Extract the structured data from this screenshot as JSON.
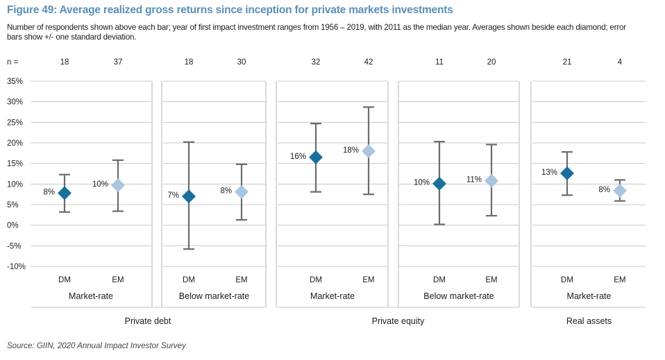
{
  "title": "Figure 49: Average realized gross returns since inception  for private markets investments",
  "subtitle": "Number of respondents shown above each bar; year of first impact investment ranges from 1956 – 2019, with 2011 as the median year. Averages shown beside each diamond; error bars show +/- one standard deviation.",
  "source": "Source: GIIN, 2020 Annual Impact Investor Survey",
  "colors": {
    "dm": "#1a6f9c",
    "em": "#a9c5e0",
    "grid": "#c8c8c8",
    "error_bar": "#6b6b6b",
    "separator": "#d9d9d9"
  },
  "chart_data": {
    "type": "scatter",
    "variant": "dot-with-error-bars",
    "n_label": "n =",
    "ylim": [
      -10,
      35
    ],
    "yticks": [
      -10,
      -5,
      0,
      5,
      10,
      15,
      20,
      25,
      30,
      35
    ],
    "ytick_labels": [
      "-10%",
      "-5%",
      "0%",
      "5%",
      "10%",
      "15%",
      "20%",
      "25%",
      "30%",
      "35%"
    ],
    "grid": true,
    "panels": [
      {
        "label": "Market-rate",
        "points": [
          {
            "category": "DM",
            "n": "18",
            "mean": 7.8,
            "label": "8%",
            "low": 3.2,
            "high": 12.3
          },
          {
            "category": "EM",
            "n": "37",
            "mean": 9.7,
            "label": "10%",
            "low": 3.4,
            "high": 15.8
          }
        ]
      },
      {
        "label": "Below market-rate",
        "points": [
          {
            "category": "DM",
            "n": "18",
            "mean": 7.0,
            "label": "7%",
            "low": -5.8,
            "high": 20.2
          },
          {
            "category": "EM",
            "n": "30",
            "mean": 8.1,
            "label": "8%",
            "low": 1.3,
            "high": 14.8
          }
        ]
      },
      {
        "label": "Market-rate",
        "points": [
          {
            "category": "DM",
            "n": "32",
            "mean": 16.5,
            "label": "16%",
            "low": 8.1,
            "high": 24.7
          },
          {
            "category": "EM",
            "n": "42",
            "mean": 18.0,
            "label": "18%",
            "low": 7.5,
            "high": 28.7
          }
        ]
      },
      {
        "label": "Below market-rate",
        "points": [
          {
            "category": "DM",
            "n": "11",
            "mean": 10.1,
            "label": "10%",
            "low": 0.2,
            "high": 20.3
          },
          {
            "category": "EM",
            "n": "20",
            "mean": 10.8,
            "label": "11%",
            "low": 2.3,
            "high": 19.6
          }
        ]
      },
      {
        "label": "Market-rate",
        "points": [
          {
            "category": "DM",
            "n": "21",
            "mean": 12.6,
            "label": "13%",
            "low": 7.3,
            "high": 17.8
          },
          {
            "category": "EM",
            "n": "4",
            "mean": 8.4,
            "label": "8%",
            "low": 5.9,
            "high": 11.0
          }
        ]
      }
    ],
    "groups": [
      {
        "label": "Private debt",
        "panels": [
          0,
          1
        ]
      },
      {
        "label": "Private equity",
        "panels": [
          2,
          3
        ]
      },
      {
        "label": "Real assets",
        "panels": [
          4
        ]
      }
    ]
  }
}
